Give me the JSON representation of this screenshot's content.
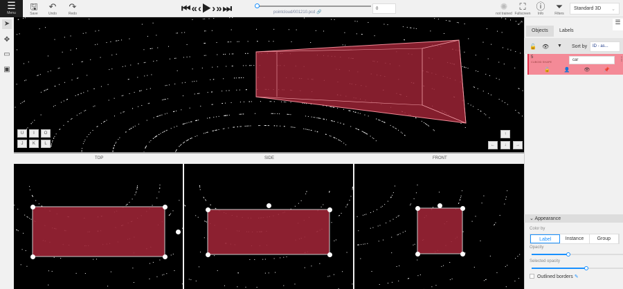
{
  "topbar": {
    "menu_label": "Menu",
    "save_label": "Save",
    "undo_label": "Undo",
    "redo_label": "Redo",
    "player": {
      "first": "⏮",
      "prev_step": "«",
      "prev": "‹",
      "play": "▶",
      "next": "›",
      "next_step": "»",
      "last": "⏭"
    },
    "filename": "pointcloud/001210.pcd",
    "frame_value": "0",
    "frame_progress": 0,
    "not_trained_label": "not trained",
    "fullscreen_label": "Fullscreen",
    "info_label": "Info",
    "filters_label": "Filters",
    "workspace": "Standard 3D"
  },
  "views": {
    "top": "TOP",
    "side": "SIDE",
    "front": "FRONT"
  },
  "keys": {
    "row1": [
      "U",
      "I",
      "O"
    ],
    "row2": [
      "J",
      "K",
      "L"
    ],
    "arrows": {
      "up": "↑",
      "left": "←",
      "down": "↓",
      "right": "→"
    }
  },
  "sidebar": {
    "tabs": [
      "Objects",
      "Labels"
    ],
    "sort_by_label": "Sort by",
    "sort_value": "ID - as...",
    "object": {
      "id": "5",
      "type": "CUBOID SHAPE",
      "label": "car",
      "color": "#f48a97"
    },
    "appearance": {
      "title": "Appearance",
      "color_by_label": "Color by",
      "color_by_options": [
        "Label",
        "Instance",
        "Group"
      ],
      "selected": "Label",
      "opacity_label": "Opacity",
      "opacity": 0.4,
      "selected_opacity_label": "Selected opacity",
      "selected_opacity": 0.6,
      "outlined_borders_label": "Outlined borders",
      "outlined_borders": false
    }
  },
  "colors": {
    "cuboid": "#9b2335",
    "accent": "#1890ff"
  }
}
